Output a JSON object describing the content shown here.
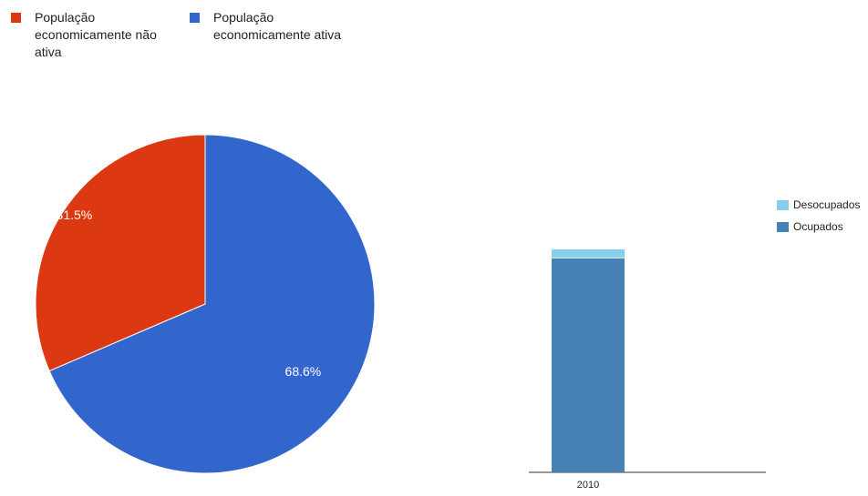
{
  "chart_data": [
    {
      "type": "pie",
      "legend_position": "top",
      "slices": [
        {
          "name": "População economicamente não ativa",
          "value": 31.5,
          "label": "31.5%",
          "color": "#dc3912"
        },
        {
          "name": "População economicamente ativa",
          "value": 68.6,
          "label": "68.6%",
          "color": "#3366cc"
        }
      ]
    },
    {
      "type": "bar",
      "stacked": true,
      "legend_position": "right",
      "categories": [
        "2010"
      ],
      "series": [
        {
          "name": "Ocupados",
          "values": [
            94.3
          ],
          "color": "#4682b4"
        },
        {
          "name": "Desocupados",
          "values": [
            4.0
          ],
          "color": "#87ceeb"
        }
      ],
      "ylim": [
        0,
        100
      ],
      "grid": false
    }
  ]
}
